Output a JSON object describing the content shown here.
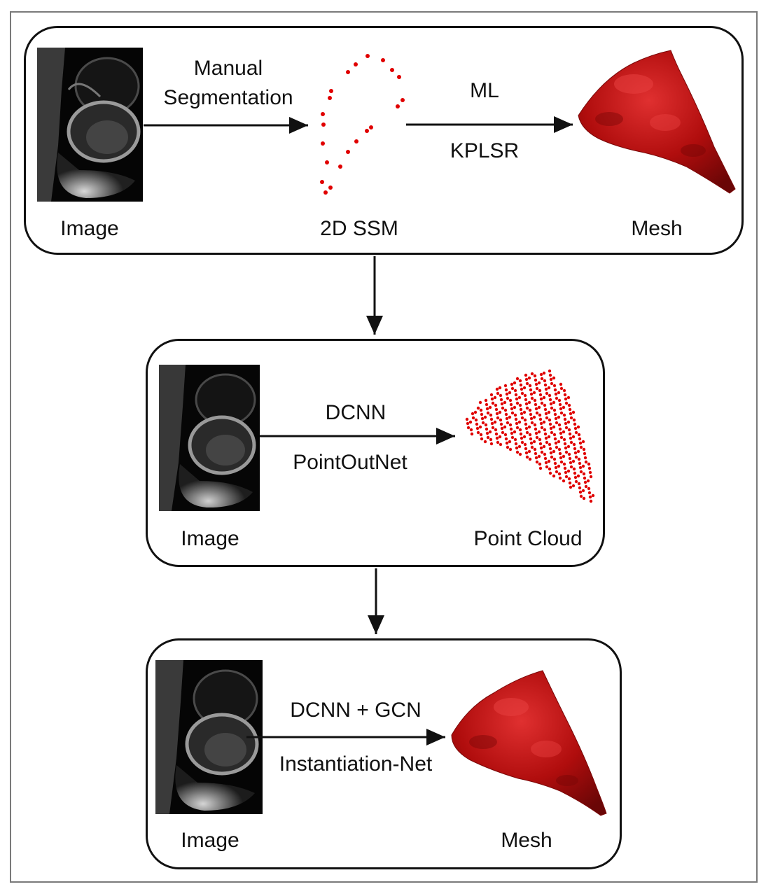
{
  "panel1": {
    "image_label": "Image",
    "arrow1_label_line1": "Manual",
    "arrow1_label_line2": "Segmentation",
    "ssm_label": "2D SSM",
    "arrow2_label_top": "ML",
    "arrow2_label_bottom": "KPLSR",
    "mesh_label": "Mesh"
  },
  "panel2": {
    "image_label": "Image",
    "arrow_label_top": "DCNN",
    "arrow_label_bottom": "PointOutNet",
    "output_label": "Point Cloud"
  },
  "panel3": {
    "image_label": "Image",
    "arrow_label_top": "DCNN + GCN",
    "arrow_label_bottom": "Instantiation-Net",
    "output_label": "Mesh"
  },
  "colors": {
    "mesh_red": "#b00d0d",
    "point_red": "#e00000",
    "outline": "#111111",
    "frame": "#7a7a7a"
  }
}
